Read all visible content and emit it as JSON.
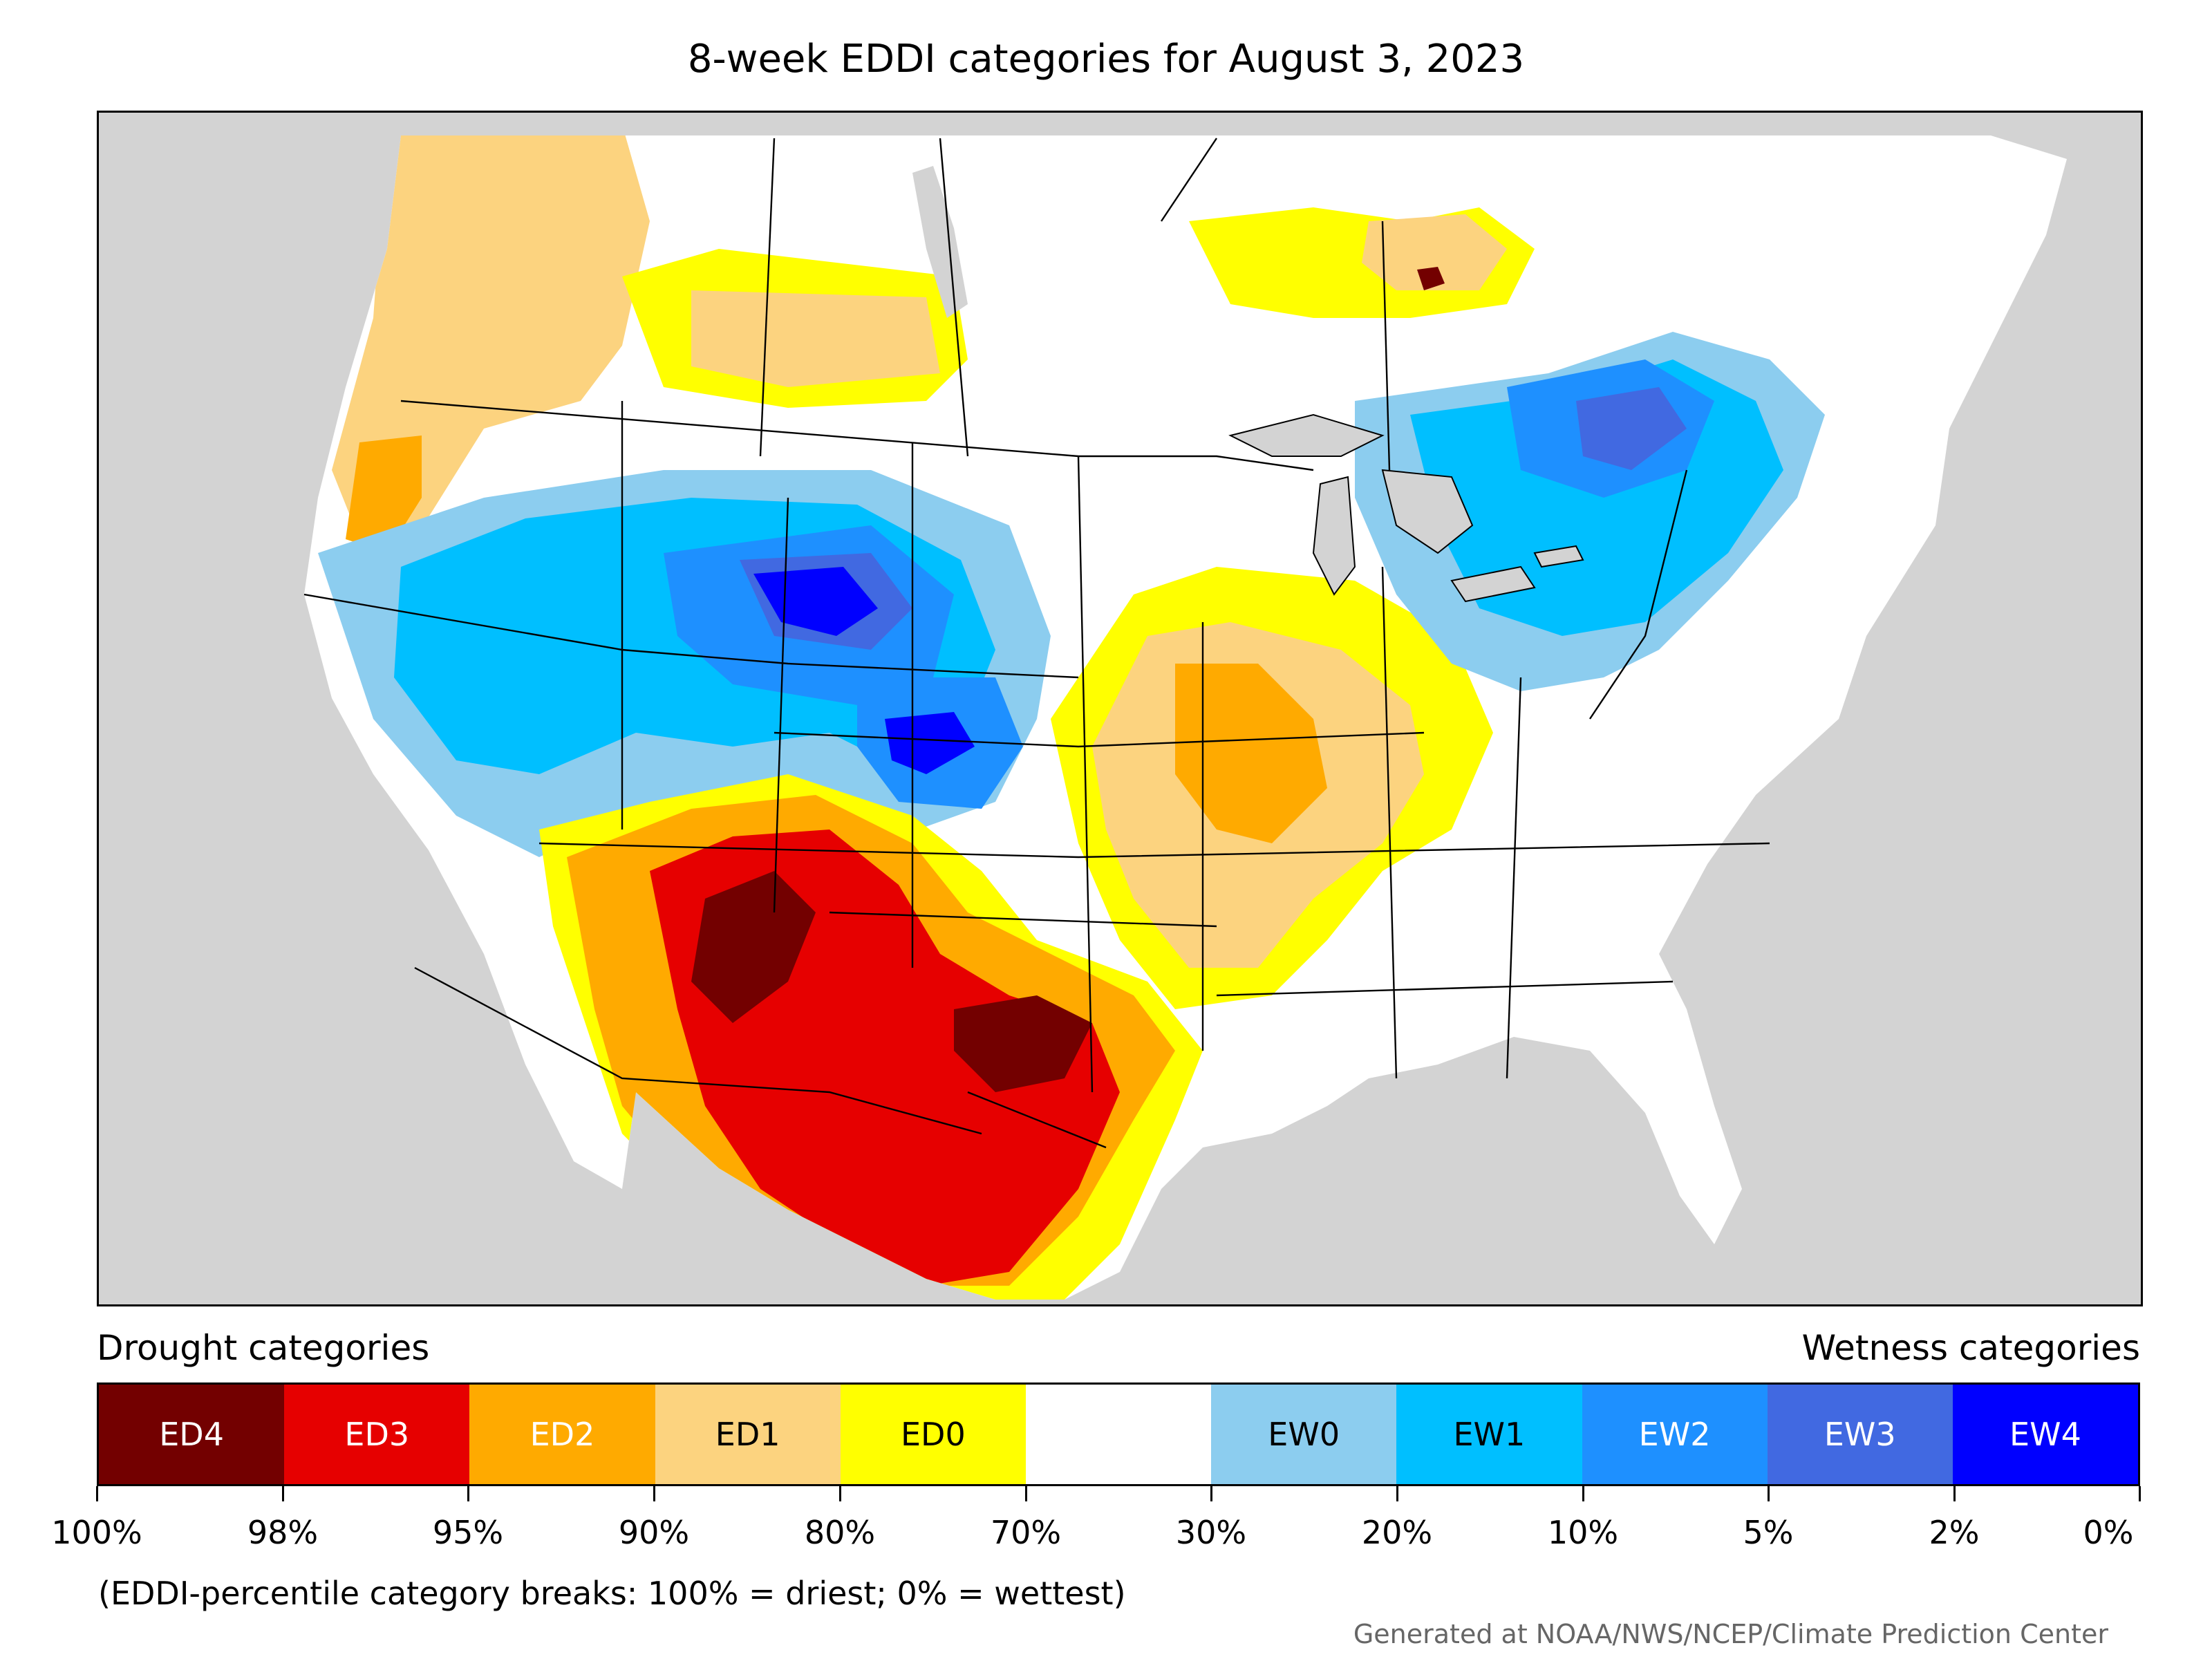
{
  "title": "8-week EDDI categories for August 3, 2023",
  "legend": {
    "drought_heading": "Drought categories",
    "wetness_heading": "Wetness categories",
    "categories": [
      {
        "label": "ED4",
        "color": "#730000",
        "text_color": "#ffffff"
      },
      {
        "label": "ED3",
        "color": "#e60000",
        "text_color": "#ffffff"
      },
      {
        "label": "ED2",
        "color": "#ffaa00",
        "text_color": "#ffffff"
      },
      {
        "label": "ED1",
        "color": "#fcd37f",
        "text_color": "#000000"
      },
      {
        "label": "ED0",
        "color": "#ffff00",
        "text_color": "#000000"
      },
      {
        "label": "",
        "color": "#ffffff",
        "text_color": "#000000"
      },
      {
        "label": "EW0",
        "color": "#8ccdef",
        "text_color": "#000000"
      },
      {
        "label": "EW1",
        "color": "#00bfff",
        "text_color": "#000000"
      },
      {
        "label": "EW2",
        "color": "#1e90ff",
        "text_color": "#ffffff"
      },
      {
        "label": "EW3",
        "color": "#4169e1",
        "text_color": "#ffffff"
      },
      {
        "label": "EW4",
        "color": "#0000ff",
        "text_color": "#ffffff"
      }
    ],
    "breaks": [
      "100%",
      "98%",
      "95%",
      "90%",
      "80%",
      "70%",
      "30%",
      "20%",
      "10%",
      "5%",
      "2%",
      "0%"
    ]
  },
  "footnote": "(EDDI-percentile category breaks: 100% = driest; 0% = wettest)",
  "credit": "Generated at NOAA/NWS/NCEP/Climate Prediction Center",
  "map": {
    "background_color": "#d3d3d3",
    "land_color": "#ffffff",
    "water_color": "#d3d3d3"
  }
}
